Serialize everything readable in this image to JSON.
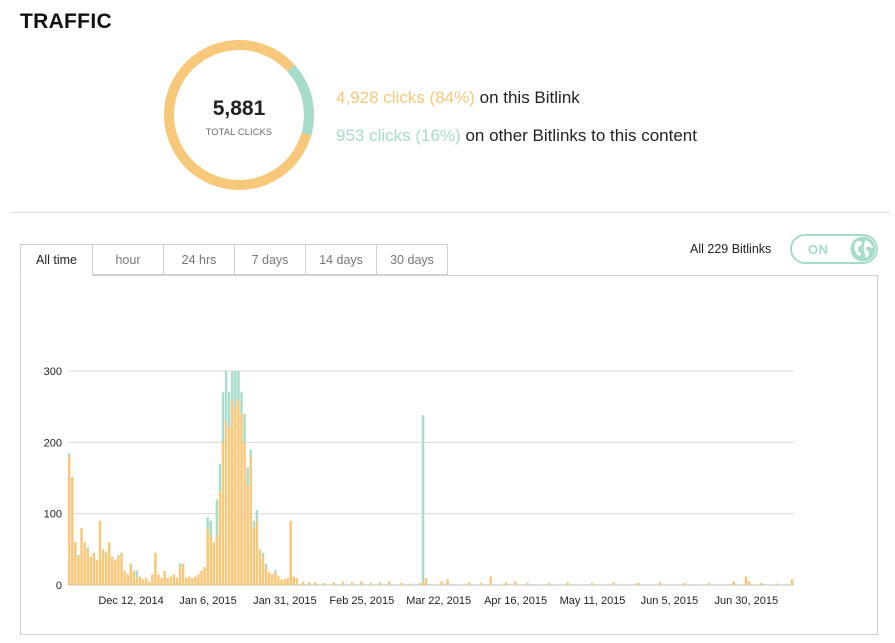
{
  "section_title": "TRAFFIC",
  "summary": {
    "total_clicks": "5,881",
    "total_label": "TOTAL CLICKS",
    "this_bitlink_stat": "4,928 clicks (84%)",
    "this_bitlink_text": " on this Bitlink",
    "other_stat": "953 clicks (16%)",
    "other_text": " on other Bitlinks to this content",
    "this_fraction": 0.84,
    "other_fraction": 0.16,
    "colors": {
      "this": "#f7c77a",
      "other": "#a6dccc"
    }
  },
  "tabs": [
    {
      "label": "All time",
      "active": true
    },
    {
      "label": "hour"
    },
    {
      "label": "24 hrs"
    },
    {
      "label": "7 days"
    },
    {
      "label": "14 days"
    },
    {
      "label": "30 days"
    }
  ],
  "toggle": {
    "label": "All 229 Bitlinks",
    "state": "ON",
    "icon": "globe-icon"
  },
  "chart_data": {
    "type": "bar",
    "stacked": true,
    "ylim": [
      0,
      300
    ],
    "yticks": [
      0,
      100,
      200,
      300
    ],
    "x_tick_labels": [
      "Dec 12, 2014",
      "Jan 6, 2015",
      "Jan 31, 2015",
      "Feb 25, 2015",
      "Mar 22, 2015",
      "Apr 16, 2015",
      "May 11, 2015",
      "Jun 5, 2015",
      "Jun 30, 2015"
    ],
    "start_date": "2014-11-22",
    "end_date": "2015-07-15",
    "grid": true,
    "colors": {
      "this_bitlink": "#f7c77a",
      "other_bitlinks": "#a6dccc"
    },
    "series": [
      {
        "name": "4,928 clicks (84%) on this Bitlink",
        "points": [
          [
            "2014-11-22",
            180
          ],
          [
            "2014-11-23",
            150
          ],
          [
            "2014-11-24",
            60
          ],
          [
            "2014-11-25",
            40
          ],
          [
            "2014-11-26",
            80
          ],
          [
            "2014-11-27",
            60
          ],
          [
            "2014-11-28",
            50
          ],
          [
            "2014-11-29",
            40
          ],
          [
            "2014-11-30",
            45
          ],
          [
            "2014-12-01",
            35
          ],
          [
            "2014-12-02",
            90
          ],
          [
            "2014-12-03",
            50
          ],
          [
            "2014-12-04",
            45
          ],
          [
            "2014-12-05",
            60
          ],
          [
            "2014-12-06",
            40
          ],
          [
            "2014-12-07",
            35
          ],
          [
            "2014-12-08",
            40
          ],
          [
            "2014-12-09",
            45
          ],
          [
            "2014-12-10",
            20
          ],
          [
            "2014-12-11",
            15
          ],
          [
            "2014-12-12",
            30
          ],
          [
            "2014-12-13",
            20
          ],
          [
            "2014-12-14",
            10
          ],
          [
            "2014-12-15",
            12
          ],
          [
            "2014-12-16",
            8
          ],
          [
            "2014-12-17",
            10
          ],
          [
            "2014-12-18",
            5
          ],
          [
            "2014-12-19",
            15
          ],
          [
            "2014-12-20",
            45
          ],
          [
            "2014-12-21",
            15
          ],
          [
            "2014-12-22",
            10
          ],
          [
            "2014-12-23",
            20
          ],
          [
            "2014-12-24",
            10
          ],
          [
            "2014-12-25",
            12
          ],
          [
            "2014-12-26",
            15
          ],
          [
            "2014-12-27",
            10
          ],
          [
            "2014-12-28",
            25
          ],
          [
            "2014-12-29",
            30
          ],
          [
            "2014-12-30",
            10
          ],
          [
            "2014-12-31",
            12
          ],
          [
            "2015-01-01",
            10
          ],
          [
            "2015-01-02",
            12
          ],
          [
            "2015-01-03",
            15
          ],
          [
            "2015-01-04",
            20
          ],
          [
            "2015-01-05",
            25
          ],
          [
            "2015-01-06",
            80
          ],
          [
            "2015-01-07",
            70
          ],
          [
            "2015-01-08",
            60
          ],
          [
            "2015-01-09",
            70
          ],
          [
            "2015-01-10",
            130
          ],
          [
            "2015-01-11",
            200
          ],
          [
            "2015-01-12",
            230
          ],
          [
            "2015-01-13",
            220
          ],
          [
            "2015-01-14",
            260
          ],
          [
            "2015-01-15",
            250
          ],
          [
            "2015-01-16",
            260
          ],
          [
            "2015-01-17",
            240
          ],
          [
            "2015-01-18",
            200
          ],
          [
            "2015-01-19",
            140
          ],
          [
            "2015-01-20",
            180
          ],
          [
            "2015-01-21",
            80
          ],
          [
            "2015-01-22",
            90
          ],
          [
            "2015-01-23",
            50
          ],
          [
            "2015-01-24",
            40
          ],
          [
            "2015-01-25",
            25
          ],
          [
            "2015-01-26",
            18
          ],
          [
            "2015-01-27",
            15
          ],
          [
            "2015-01-28",
            18
          ],
          [
            "2015-01-29",
            12
          ],
          [
            "2015-01-30",
            8
          ],
          [
            "2015-01-31",
            8
          ],
          [
            "2015-02-01",
            10
          ],
          [
            "2015-02-02",
            90
          ],
          [
            "2015-02-03",
            12
          ],
          [
            "2015-02-04",
            10
          ],
          [
            "2015-02-06",
            5
          ],
          [
            "2015-02-08",
            4
          ],
          [
            "2015-02-10",
            4
          ],
          [
            "2015-02-13",
            3
          ],
          [
            "2015-02-16",
            4
          ],
          [
            "2015-02-19",
            5
          ],
          [
            "2015-02-22",
            4
          ],
          [
            "2015-02-25",
            5
          ],
          [
            "2015-02-28",
            3
          ],
          [
            "2015-03-03",
            4
          ],
          [
            "2015-03-06",
            5
          ],
          [
            "2015-03-10",
            3
          ],
          [
            "2015-03-13",
            2
          ],
          [
            "2015-03-16",
            3
          ],
          [
            "2015-03-17",
            3
          ],
          [
            "2015-03-18",
            10
          ],
          [
            "2015-03-23",
            5
          ],
          [
            "2015-03-25",
            8
          ],
          [
            "2015-04-01",
            4
          ],
          [
            "2015-04-05",
            3
          ],
          [
            "2015-04-08",
            12
          ],
          [
            "2015-04-13",
            4
          ],
          [
            "2015-04-16",
            5
          ],
          [
            "2015-04-20",
            3
          ],
          [
            "2015-04-27",
            3
          ],
          [
            "2015-05-03",
            4
          ],
          [
            "2015-05-11",
            3
          ],
          [
            "2015-05-18",
            4
          ],
          [
            "2015-05-26",
            3
          ],
          [
            "2015-06-02",
            4
          ],
          [
            "2015-06-10",
            3
          ],
          [
            "2015-06-18",
            3
          ],
          [
            "2015-06-26",
            5
          ],
          [
            "2015-06-30",
            12
          ],
          [
            "2015-07-01",
            5
          ],
          [
            "2015-07-05",
            3
          ],
          [
            "2015-07-10",
            2
          ],
          [
            "2015-07-15",
            8
          ]
        ]
      },
      {
        "name": "953 clicks (16%) on other Bitlinks to this content",
        "points": [
          [
            "2014-11-22",
            5
          ],
          [
            "2014-11-23",
            2
          ],
          [
            "2014-11-25",
            2
          ],
          [
            "2014-11-28",
            3
          ],
          [
            "2014-12-04",
            2
          ],
          [
            "2014-12-08",
            2
          ],
          [
            "2014-12-14",
            10
          ],
          [
            "2014-12-28",
            5
          ],
          [
            "2015-01-06",
            15
          ],
          [
            "2015-01-07",
            20
          ],
          [
            "2015-01-09",
            50
          ],
          [
            "2015-01-10",
            40
          ],
          [
            "2015-01-11",
            70
          ],
          [
            "2015-01-12",
            70
          ],
          [
            "2015-01-13",
            50
          ],
          [
            "2015-01-14",
            40
          ],
          [
            "2015-01-15",
            50
          ],
          [
            "2015-01-16",
            40
          ],
          [
            "2015-01-17",
            30
          ],
          [
            "2015-01-18",
            40
          ],
          [
            "2015-01-19",
            25
          ],
          [
            "2015-01-20",
            10
          ],
          [
            "2015-01-21",
            10
          ],
          [
            "2015-01-22",
            15
          ],
          [
            "2015-01-24",
            5
          ],
          [
            "2015-01-25",
            5
          ],
          [
            "2015-01-28",
            3
          ],
          [
            "2015-03-17",
            235
          ]
        ]
      }
    ]
  }
}
